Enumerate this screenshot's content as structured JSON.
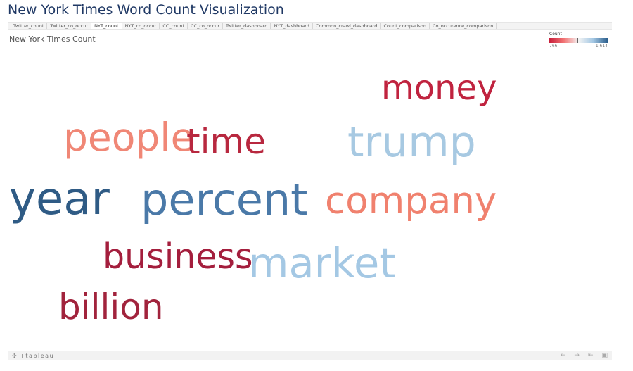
{
  "page_title": "New York Times Word Count Visualization",
  "tabs": [
    {
      "label": "Twitter_count",
      "active": false
    },
    {
      "label": "Twitter_co_occur",
      "active": false
    },
    {
      "label": "NYT_count",
      "active": true
    },
    {
      "label": "NYT_co_occur",
      "active": false
    },
    {
      "label": "CC_count",
      "active": false
    },
    {
      "label": "CC_co_occur",
      "active": false
    },
    {
      "label": "Twitter_dashboard",
      "active": false
    },
    {
      "label": "NYT_dashboard",
      "active": false
    },
    {
      "label": "Common_crawl_dashboard",
      "active": false
    },
    {
      "label": "Count_comparison",
      "active": false
    },
    {
      "label": "Co_occurence_comparison",
      "active": false
    }
  ],
  "sheet_title": "New York Times Count",
  "legend": {
    "title": "Count",
    "min_label": "766",
    "max_label": "1,614",
    "colors": {
      "low": "#c81e3a",
      "mid": "#f4f4f4",
      "high": "#2c5f8d"
    }
  },
  "words": [
    {
      "key": "money",
      "text": "money",
      "color": "#c0233f"
    },
    {
      "key": "people",
      "text": "people",
      "color": "#f08776"
    },
    {
      "key": "time",
      "text": "time",
      "color": "#b8283f"
    },
    {
      "key": "trump",
      "text": "trump",
      "color": "#a7c9e2"
    },
    {
      "key": "year",
      "text": "year",
      "color": "#2f5b85"
    },
    {
      "key": "percent",
      "text": "percent",
      "color": "#4a79a8"
    },
    {
      "key": "company",
      "text": "company",
      "color": "#f0816e"
    },
    {
      "key": "business",
      "text": "business",
      "color": "#a41e3d"
    },
    {
      "key": "market",
      "text": "market",
      "color": "#a4c8e4"
    },
    {
      "key": "billion",
      "text": "billion",
      "color": "#a1233c"
    }
  ],
  "footer": {
    "brand": "+tableau",
    "icons": [
      "undo-icon",
      "redo-icon",
      "revert-icon",
      "fullscreen-icon"
    ]
  }
}
